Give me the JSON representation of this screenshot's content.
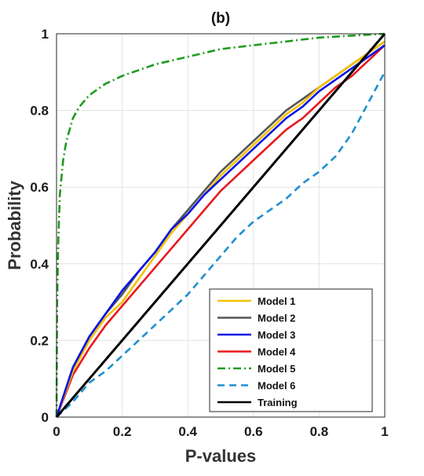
{
  "chart_data": {
    "type": "line",
    "title": "(b)",
    "xlabel": "P-values",
    "ylabel": "Probability",
    "xlim": [
      0,
      1
    ],
    "ylim": [
      0,
      1
    ],
    "x_ticks": [
      "0",
      "0.2",
      "0.4",
      "0.6",
      "0.8",
      "1"
    ],
    "y_ticks": [
      "0",
      "0.2",
      "0.4",
      "0.6",
      "0.8",
      "1"
    ],
    "grid": true,
    "legend_position": "bottom-right",
    "series": [
      {
        "name": "Model 1",
        "color": "#f2c200",
        "style": "solid",
        "x": [
          0,
          0.05,
          0.1,
          0.15,
          0.2,
          0.25,
          0.3,
          0.35,
          0.4,
          0.45,
          0.5,
          0.55,
          0.6,
          0.65,
          0.7,
          0.75,
          0.8,
          0.85,
          0.9,
          0.95,
          1.0
        ],
        "y": [
          0,
          0.12,
          0.2,
          0.26,
          0.3,
          0.36,
          0.42,
          0.48,
          0.53,
          0.58,
          0.63,
          0.67,
          0.71,
          0.75,
          0.79,
          0.82,
          0.86,
          0.89,
          0.92,
          0.95,
          0.98
        ]
      },
      {
        "name": "Model 2",
        "color": "#555555",
        "style": "solid",
        "x": [
          0,
          0.05,
          0.1,
          0.15,
          0.2,
          0.25,
          0.3,
          0.35,
          0.4,
          0.45,
          0.5,
          0.55,
          0.6,
          0.65,
          0.7,
          0.75,
          0.8,
          0.85,
          0.9,
          0.95,
          1.0
        ],
        "y": [
          0,
          0.13,
          0.21,
          0.27,
          0.32,
          0.38,
          0.43,
          0.49,
          0.54,
          0.59,
          0.64,
          0.68,
          0.72,
          0.76,
          0.8,
          0.83,
          0.86,
          0.89,
          0.92,
          0.95,
          0.98
        ]
      },
      {
        "name": "Model 3",
        "color": "#0b14e6",
        "style": "solid",
        "x": [
          0,
          0.05,
          0.1,
          0.15,
          0.2,
          0.25,
          0.3,
          0.35,
          0.4,
          0.45,
          0.5,
          0.55,
          0.6,
          0.65,
          0.7,
          0.75,
          0.8,
          0.85,
          0.9,
          0.95,
          1.0
        ],
        "y": [
          0,
          0.13,
          0.21,
          0.27,
          0.33,
          0.38,
          0.43,
          0.49,
          0.53,
          0.58,
          0.62,
          0.66,
          0.7,
          0.74,
          0.78,
          0.81,
          0.85,
          0.88,
          0.91,
          0.94,
          0.97
        ]
      },
      {
        "name": "Model 4",
        "color": "#e8191f",
        "style": "solid",
        "x": [
          0,
          0.05,
          0.1,
          0.15,
          0.2,
          0.25,
          0.3,
          0.35,
          0.4,
          0.45,
          0.5,
          0.55,
          0.6,
          0.65,
          0.7,
          0.75,
          0.8,
          0.85,
          0.9,
          0.95,
          1.0
        ],
        "y": [
          0,
          0.11,
          0.18,
          0.24,
          0.29,
          0.34,
          0.39,
          0.44,
          0.49,
          0.54,
          0.59,
          0.63,
          0.67,
          0.71,
          0.75,
          0.78,
          0.82,
          0.86,
          0.89,
          0.93,
          0.97
        ]
      },
      {
        "name": "Model 5",
        "color": "#1f9a1f",
        "style": "dashdot",
        "x": [
          0,
          0.002,
          0.005,
          0.01,
          0.02,
          0.03,
          0.05,
          0.07,
          0.1,
          0.15,
          0.2,
          0.3,
          0.4,
          0.5,
          0.6,
          0.7,
          0.8,
          0.9,
          1.0
        ],
        "y": [
          0,
          0.3,
          0.45,
          0.58,
          0.67,
          0.72,
          0.78,
          0.81,
          0.84,
          0.87,
          0.89,
          0.92,
          0.94,
          0.96,
          0.97,
          0.98,
          0.99,
          0.995,
          1.0
        ]
      },
      {
        "name": "Model 6",
        "color": "#1e8fd0",
        "style": "dashed",
        "x": [
          0,
          0.05,
          0.1,
          0.15,
          0.2,
          0.25,
          0.3,
          0.35,
          0.4,
          0.45,
          0.5,
          0.55,
          0.6,
          0.65,
          0.7,
          0.75,
          0.8,
          0.85,
          0.9,
          0.95,
          1.0
        ],
        "y": [
          0,
          0.04,
          0.09,
          0.12,
          0.16,
          0.2,
          0.24,
          0.28,
          0.32,
          0.37,
          0.42,
          0.47,
          0.51,
          0.54,
          0.57,
          0.61,
          0.64,
          0.68,
          0.74,
          0.82,
          0.9
        ]
      },
      {
        "name": "Training",
        "color": "#000000",
        "style": "solid",
        "x": [
          0,
          1
        ],
        "y": [
          0,
          1
        ]
      }
    ]
  }
}
